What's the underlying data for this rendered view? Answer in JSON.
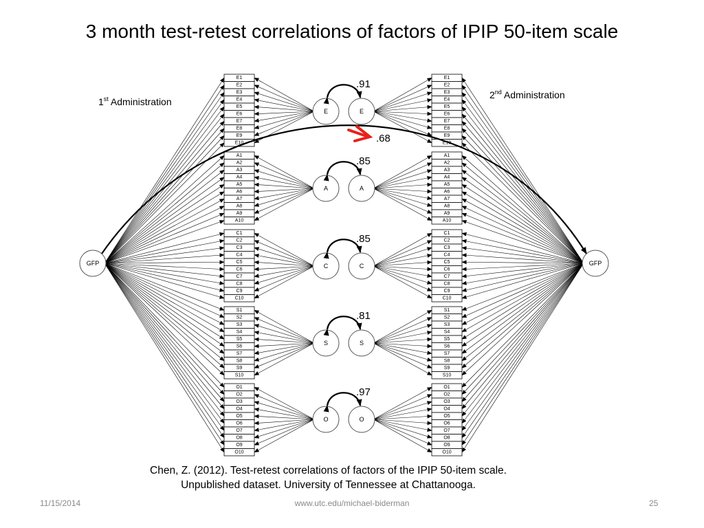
{
  "title": "3 month test-retest correlations of factors of IPIP 50-item scale",
  "admin_left": {
    "prefix": "1",
    "sup": "st",
    "suffix": " Administration"
  },
  "admin_right": {
    "prefix": "2",
    "sup": "nd",
    "suffix": " Administration"
  },
  "gfp_label": "GFP",
  "gfp_correlation": ".68",
  "factors": [
    {
      "label": "E",
      "correlation": ".91",
      "items": [
        "E1",
        "E2",
        "E3",
        "E4",
        "E5",
        "E6",
        "E7",
        "E8",
        "E9",
        "E10"
      ]
    },
    {
      "label": "A",
      "correlation": ".85",
      "items": [
        "A1",
        "A2",
        "A3",
        "A4",
        "A5",
        "A6",
        "A7",
        "A8",
        "A9",
        "A10"
      ]
    },
    {
      "label": "C",
      "correlation": ".85",
      "items": [
        "C1",
        "C2",
        "C3",
        "C4",
        "C5",
        "C6",
        "C7",
        "C8",
        "C9",
        "C10"
      ]
    },
    {
      "label": "S",
      "correlation": ".81",
      "items": [
        "S1",
        "S2",
        "S3",
        "S4",
        "S5",
        "S6",
        "S7",
        "S8",
        "S9",
        "S10"
      ]
    },
    {
      "label": "O",
      "correlation": ".97",
      "items": [
        "O1",
        "O2",
        "O3",
        "O4",
        "O5",
        "O6",
        "O7",
        "O8",
        "O9",
        "O10"
      ]
    }
  ],
  "citation": {
    "line1": "Chen, Z. (2012).  Test-retest correlations of factors of the IPIP 50-item scale.",
    "line2": "Unpublished dataset.  University of Tennessee at Chattanooga."
  },
  "footer": {
    "date": "11/15/2014",
    "url": "www.utc.edu/michael-biderman",
    "page": "25"
  },
  "colors": {
    "highlight_arrow": "#e8201a",
    "line": "#000000"
  }
}
